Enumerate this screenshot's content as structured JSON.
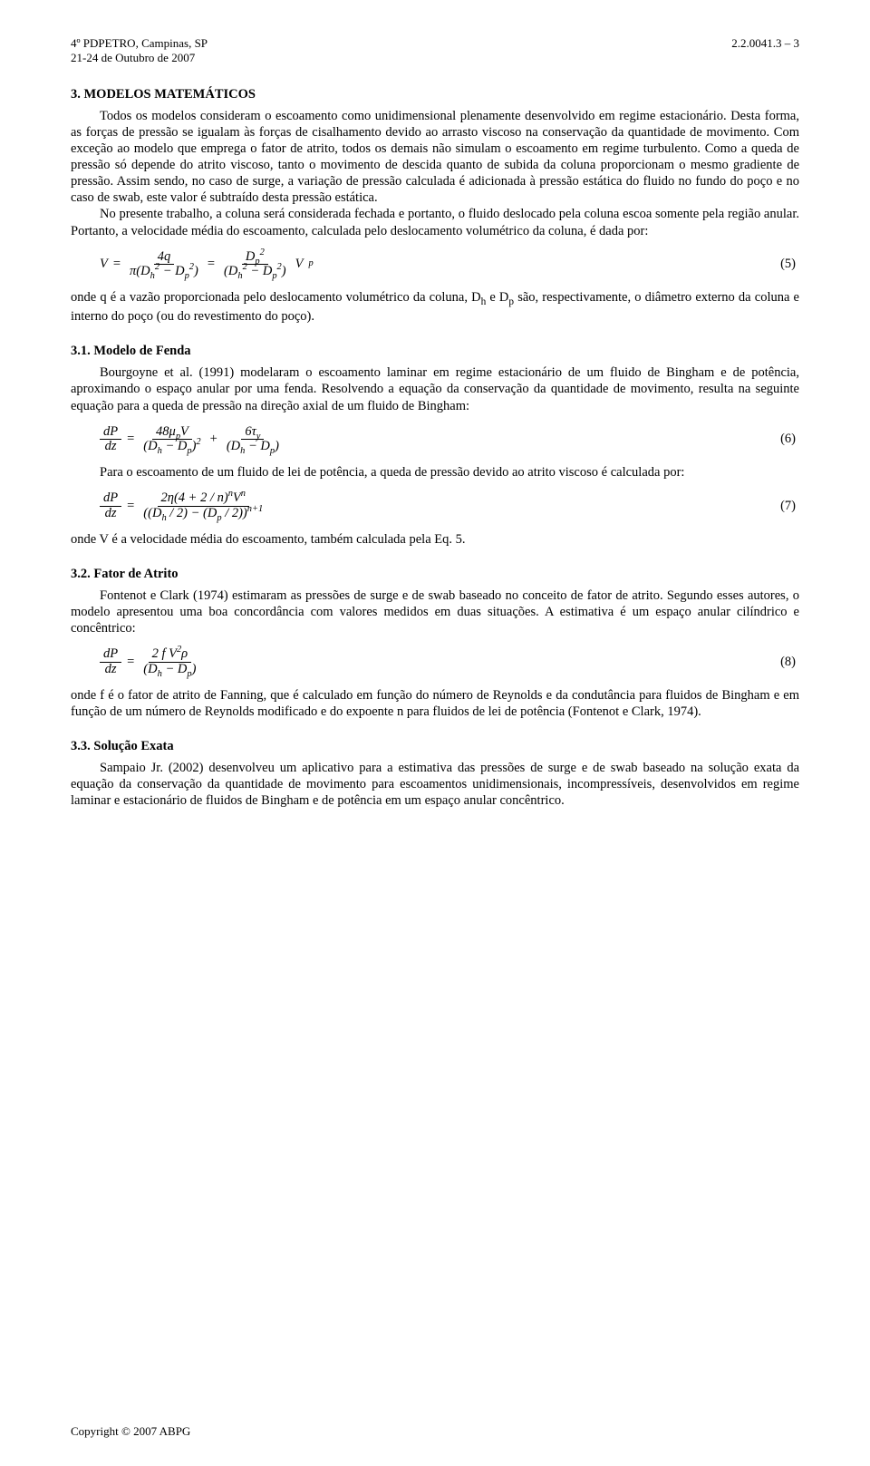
{
  "header": {
    "left_line1": "4º PDPETRO, Campinas, SP",
    "left_line2": "21-24 de Outubro de 2007",
    "right": "2.2.0041.3 – 3"
  },
  "section3": {
    "title": "3. MODELOS MATEMÁTICOS",
    "para1": "Todos os modelos consideram o escoamento como unidimensional plenamente desenvolvido em regime estacionário. Desta forma, as forças de pressão se igualam às forças de cisalhamento devido ao arrasto viscoso na conservação da quantidade de movimento. Com exceção ao modelo que emprega o fator de atrito, todos os demais não simulam o escoamento em regime turbulento. Como a queda de pressão só depende do atrito viscoso, tanto o movimento de descida quanto de subida da coluna proporcionam o mesmo gradiente de pressão. Assim sendo, no caso de surge, a variação de pressão calculada é adicionada à pressão estática do fluido no fundo do poço e no caso de swab, este valor é subtraído desta pressão estática.",
    "para2": "No presente trabalho, a coluna será considerada fechada e portanto, o fluido deslocado pela coluna escoa somente pela região anular. Portanto, a velocidade média do escoamento, calculada pelo deslocamento volumétrico da coluna, é dada por:",
    "eq5_num": "(5)",
    "para3a": "onde q é a vazão proporcionada pelo deslocamento volumétrico da coluna, D",
    "para3b": " e D",
    "para3c": " são, respectivamente, o diâmetro externo da coluna e interno do poço (ou do revestimento do poço)."
  },
  "section31": {
    "title": "3.1. Modelo de Fenda",
    "para1": "Bourgoyne et al. (1991) modelaram o escoamento laminar em regime estacionário de um fluido de Bingham e de potência, aproximando o espaço anular por uma fenda. Resolvendo a equação da conservação da quantidade de movimento, resulta na seguinte equação para a queda de pressão na direção axial de um fluido de Bingham:",
    "eq6_num": "(6)",
    "para2": "Para o escoamento de um fluido de lei de potência, a queda de pressão devido ao atrito viscoso é calculada por:",
    "eq7_num": "(7)",
    "para3": "onde V é a velocidade média do escoamento, também calculada pela Eq. 5."
  },
  "section32": {
    "title": "3.2. Fator de Atrito",
    "para1": "Fontenot e Clark (1974) estimaram as pressões de surge e de swab baseado no conceito de fator de atrito. Segundo esses autores, o modelo apresentou uma boa concordância com valores medidos em duas situações. A estimativa é um espaço anular cilíndrico e concêntrico:",
    "eq8_num": "(8)",
    "para2": "onde f é o fator de atrito de Fanning, que é calculado em função do número de Reynolds e da condutância  para fluidos de Bingham e em função de um número de Reynolds modificado e do expoente n para fluidos de lei de potência (Fontenot e Clark, 1974)."
  },
  "section33": {
    "title": "3.3. Solução Exata",
    "para1": "Sampaio Jr. (2002) desenvolveu um aplicativo para a estimativa das pressões de surge e de swab baseado na solução exata da equação da conservação da quantidade de movimento para escoamentos unidimensionais, incompressíveis, desenvolvidos em regime laminar e estacionário de fluidos de Bingham e de potência em um espaço anular concêntrico."
  },
  "footer": {
    "copyright": "Copyright © 2007 ABPG"
  },
  "equations": {
    "eq5": {
      "lhs": "V",
      "f1_num": "4q",
      "f1_den_pre": "π(D",
      "f1_den_mid": " − D",
      "f1_den_post": ")",
      "f2_num_pre": "D",
      "f2_den_pre": "(D",
      "f2_den_mid": " − D",
      "f2_den_post": ")",
      "tail": " V",
      "tail_sub": "p"
    },
    "eq6": {
      "lhs_num": "dP",
      "lhs_den": "dz",
      "t1_num_pre": "48μ",
      "t1_num_mid": "V",
      "t1_den_pre": "(D",
      "t1_den_mid": " − D",
      "t1_den_post": ")",
      "t2_num_pre": "6τ",
      "t2_den_pre": "(D",
      "t2_den_mid": " − D",
      "t2_den_post": ")"
    },
    "eq7": {
      "lhs_num": "dP",
      "lhs_den": "dz",
      "num_pre": "2η(4 + 2 / n)",
      "num_sup1": "n",
      "num_mid": "V",
      "num_sup2": "n",
      "den_pre": "((D",
      "den_mid": " / 2) − (D",
      "den_post": " / 2))",
      "den_sup": "n+1"
    },
    "eq8": {
      "lhs_num": "dP",
      "lhs_den": "dz",
      "num_pre": "2 f V",
      "num_sup": "2",
      "num_post": "ρ",
      "den_pre": "(D",
      "den_mid": " − D",
      "den_post": ")"
    },
    "subs": {
      "h": "h",
      "p": "p",
      "y": "y",
      "two": "2"
    }
  }
}
